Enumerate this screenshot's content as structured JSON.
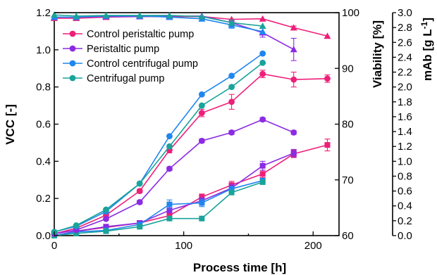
{
  "chart_data": {
    "type": "line",
    "xlabel": "Process time [h]",
    "x_ticks": [
      0,
      100,
      200
    ],
    "xlim": [
      0,
      220
    ],
    "axes": {
      "vcc": {
        "label": "VCC [-]",
        "lim": [
          0,
          1.2
        ],
        "ticks": [
          "0.0",
          "0.2",
          "0.4",
          "0.6",
          "0.8",
          "1.0",
          "1.2"
        ]
      },
      "viability": {
        "label": "Viability [%]",
        "lim": [
          60,
          100
        ],
        "ticks": [
          "60",
          "70",
          "80",
          "90",
          "100"
        ]
      },
      "mab": {
        "label_main": "mAb [g L",
        "label_sup": "-1",
        "label_end": "]",
        "lim": [
          0,
          3.0
        ],
        "ticks": [
          "0.0",
          "0.2",
          "0.4",
          "0.6",
          "0.8",
          "1.0",
          "1.2",
          "1.4",
          "1.6",
          "1.8",
          "2.0",
          "2.2",
          "2.4",
          "2.6",
          "2.8",
          "3.0"
        ]
      }
    },
    "legend": {
      "placement": "top-left",
      "entries": [
        "Control peristaltic pump",
        "Peristaltic pump",
        "Control centrifugal pump",
        "Centrifugal pump"
      ]
    },
    "colors": {
      "control_peristaltic": "#ee1f79",
      "peristaltic": "#8b2be2",
      "control_centrifugal": "#1f86ef",
      "centrifugal": "#1aa39b"
    },
    "series": [
      {
        "name": "Control peristaltic pump",
        "axis": "vcc",
        "marker": "circle",
        "color_key": "control_peristaltic",
        "x": [
          0,
          17,
          40,
          66,
          89,
          114,
          137,
          161,
          185,
          211
        ],
        "y": [
          0.01,
          0.04,
          0.11,
          0.24,
          0.46,
          0.66,
          0.72,
          0.87,
          0.84,
          0.845
        ],
        "err": [
          0,
          0,
          0,
          0.01,
          0.015,
          0.02,
          0.04,
          0.02,
          0.04,
          0.02
        ]
      },
      {
        "name": "Peristaltic pump",
        "axis": "vcc",
        "marker": "circle",
        "color_key": "peristaltic",
        "x": [
          0,
          17,
          40,
          66,
          89,
          114,
          137,
          161,
          185
        ],
        "y": [
          0.01,
          0.03,
          0.09,
          0.18,
          0.36,
          0.51,
          0.555,
          0.625,
          0.555
        ],
        "err": [
          0,
          0,
          0,
          0.01,
          0.01,
          0.01,
          0.01,
          0.01,
          0.01
        ]
      },
      {
        "name": "Control centrifugal pump",
        "axis": "vcc",
        "marker": "circle",
        "color_key": "control_centrifugal",
        "x": [
          0,
          17,
          40,
          66,
          89,
          114,
          137,
          161
        ],
        "y": [
          0.02,
          0.05,
          0.13,
          0.28,
          0.535,
          0.76,
          0.86,
          0.98
        ],
        "err": [
          0,
          0,
          0,
          0,
          0,
          0,
          0,
          0
        ]
      },
      {
        "name": "Centrifugal pump",
        "axis": "vcc",
        "marker": "circle",
        "color_key": "centrifugal",
        "x": [
          0,
          17,
          40,
          66,
          89,
          114,
          137,
          161
        ],
        "y": [
          0.02,
          0.055,
          0.14,
          0.28,
          0.48,
          0.7,
          0.8,
          0.93
        ],
        "err": [
          0,
          0,
          0,
          0,
          0,
          0,
          0,
          0
        ]
      },
      {
        "name": "Control peristaltic pump",
        "axis": "viability",
        "marker": "triangle",
        "color_key": "control_peristaltic",
        "x": [
          0,
          17,
          40,
          66,
          89,
          114,
          137,
          161,
          185,
          211
        ],
        "y": [
          99,
          99,
          99.2,
          99.3,
          99.3,
          99.3,
          98.8,
          98.9,
          97.3,
          95.8
        ],
        "err": [
          0,
          0,
          0,
          0,
          0,
          0,
          0,
          0,
          0.3,
          0
        ]
      },
      {
        "name": "Peristaltic pump",
        "axis": "viability",
        "marker": "triangle",
        "color_key": "peristaltic",
        "x": [
          0,
          17,
          40,
          66,
          89,
          114,
          137,
          161,
          185
        ],
        "y": [
          99.2,
          99.2,
          99.3,
          99.3,
          99.4,
          99.4,
          98.2,
          96.4,
          93.4
        ],
        "err": [
          0,
          0,
          0,
          0,
          0,
          0,
          0.5,
          0.8,
          2.0
        ]
      },
      {
        "name": "Control centrifugal pump",
        "axis": "viability",
        "marker": "triangle",
        "color_key": "control_centrifugal",
        "x": [
          0,
          17,
          40,
          66,
          89,
          114,
          137,
          161
        ],
        "y": [
          99.2,
          99.2,
          99.4,
          99.4,
          99.2,
          98.9,
          97.8,
          96.6
        ],
        "err": [
          0,
          0,
          0,
          0,
          0,
          0,
          0.6,
          0
        ]
      },
      {
        "name": "Centrifugal pump",
        "axis": "viability",
        "marker": "triangle",
        "color_key": "centrifugal",
        "x": [
          0,
          17,
          40,
          66,
          89,
          114,
          137,
          161
        ],
        "y": [
          99.6,
          99.4,
          99.5,
          99.5,
          99.5,
          99.3,
          98.2,
          97.6
        ],
        "err": [
          0,
          0,
          0,
          0,
          0,
          0,
          0.5,
          0
        ]
      },
      {
        "name": "Control peristaltic pump",
        "axis": "mab",
        "marker": "square",
        "color_key": "control_peristaltic",
        "x": [
          0,
          17,
          40,
          66,
          89,
          114,
          137,
          161,
          185,
          211
        ],
        "y": [
          0.0,
          0.06,
          0.11,
          0.17,
          0.27,
          0.52,
          0.68,
          0.83,
          1.1,
          1.22
        ],
        "err": [
          0,
          0,
          0,
          0.03,
          0.03,
          0.04,
          0.05,
          0.05,
          0.05,
          0.08
        ]
      },
      {
        "name": "Peristaltic pump",
        "axis": "mab",
        "marker": "square",
        "color_key": "peristaltic",
        "x": [
          0,
          17,
          40,
          66,
          89,
          114,
          137,
          161,
          185
        ],
        "y": [
          0.0,
          0.06,
          0.12,
          0.17,
          0.34,
          0.47,
          0.64,
          0.94,
          1.11
        ],
        "err": [
          0,
          0,
          0,
          0.02,
          0.03,
          0.04,
          0.05,
          0.06,
          0.05
        ]
      },
      {
        "name": "Control centrifugal pump",
        "axis": "mab",
        "marker": "square",
        "color_key": "control_centrifugal",
        "x": [
          0,
          17,
          40,
          66,
          89,
          114,
          137,
          161
        ],
        "y": [
          0.0,
          0.05,
          0.07,
          0.15,
          0.42,
          0.44,
          0.63,
          0.74
        ],
        "err": [
          0,
          0,
          0,
          0,
          0.06,
          0.05,
          0,
          0
        ]
      },
      {
        "name": "Centrifugal pump",
        "axis": "mab",
        "marker": "square",
        "color_key": "centrifugal",
        "x": [
          0,
          17,
          40,
          66,
          89,
          114,
          137,
          161
        ],
        "y": [
          0.0,
          0.03,
          0.06,
          0.12,
          0.23,
          0.23,
          0.58,
          0.72
        ],
        "err": [
          0,
          0,
          0,
          0,
          0,
          0,
          0,
          0
        ]
      }
    ]
  }
}
